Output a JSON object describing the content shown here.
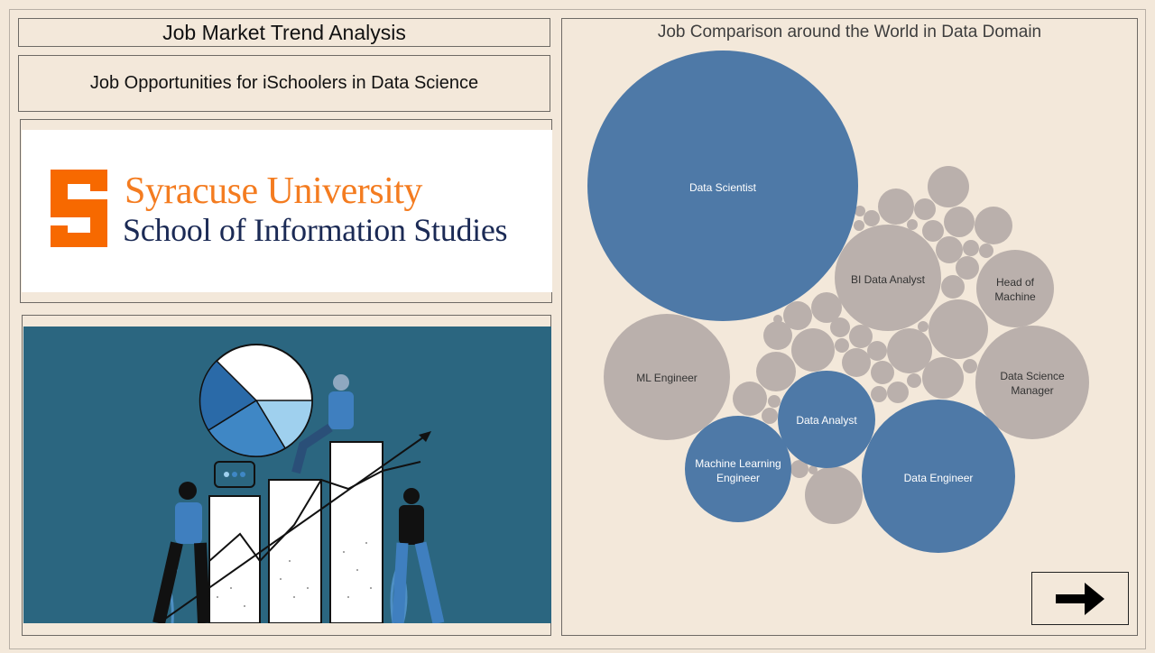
{
  "header": {
    "title": "Job Market Trend Analysis",
    "subtitle": "Job Opportunities for iSchoolers in Data Science"
  },
  "logo": {
    "line1": "Syracuse University",
    "line2": "School of Information Studies",
    "s_color": "#f76900",
    "line1_color": "#f47c20",
    "line2_color": "#1b2a55"
  },
  "illustration": {
    "description_icon": "people-with-growth-chart-icon",
    "background_color": "#2b6680"
  },
  "bubble_chart": {
    "title": "Job Comparison around the World in Data Domain",
    "colors": {
      "highlight": "#4e79a7",
      "other": "#bab0ac"
    },
    "labeled": [
      {
        "label": "Data Scientist",
        "highlight": true
      },
      {
        "label": "BI Data Analyst",
        "highlight": false
      },
      {
        "label": "Head of Machine",
        "highlight": false
      },
      {
        "label": "ML Engineer",
        "highlight": false
      },
      {
        "label": "Data Science Manager",
        "highlight": false
      },
      {
        "label": "Data Analyst",
        "highlight": true
      },
      {
        "label": "Machine Learning Engineer",
        "highlight": true
      },
      {
        "label": "Data Engineer",
        "highlight": true
      }
    ]
  },
  "nav": {
    "next_icon": "arrow-right-icon"
  }
}
